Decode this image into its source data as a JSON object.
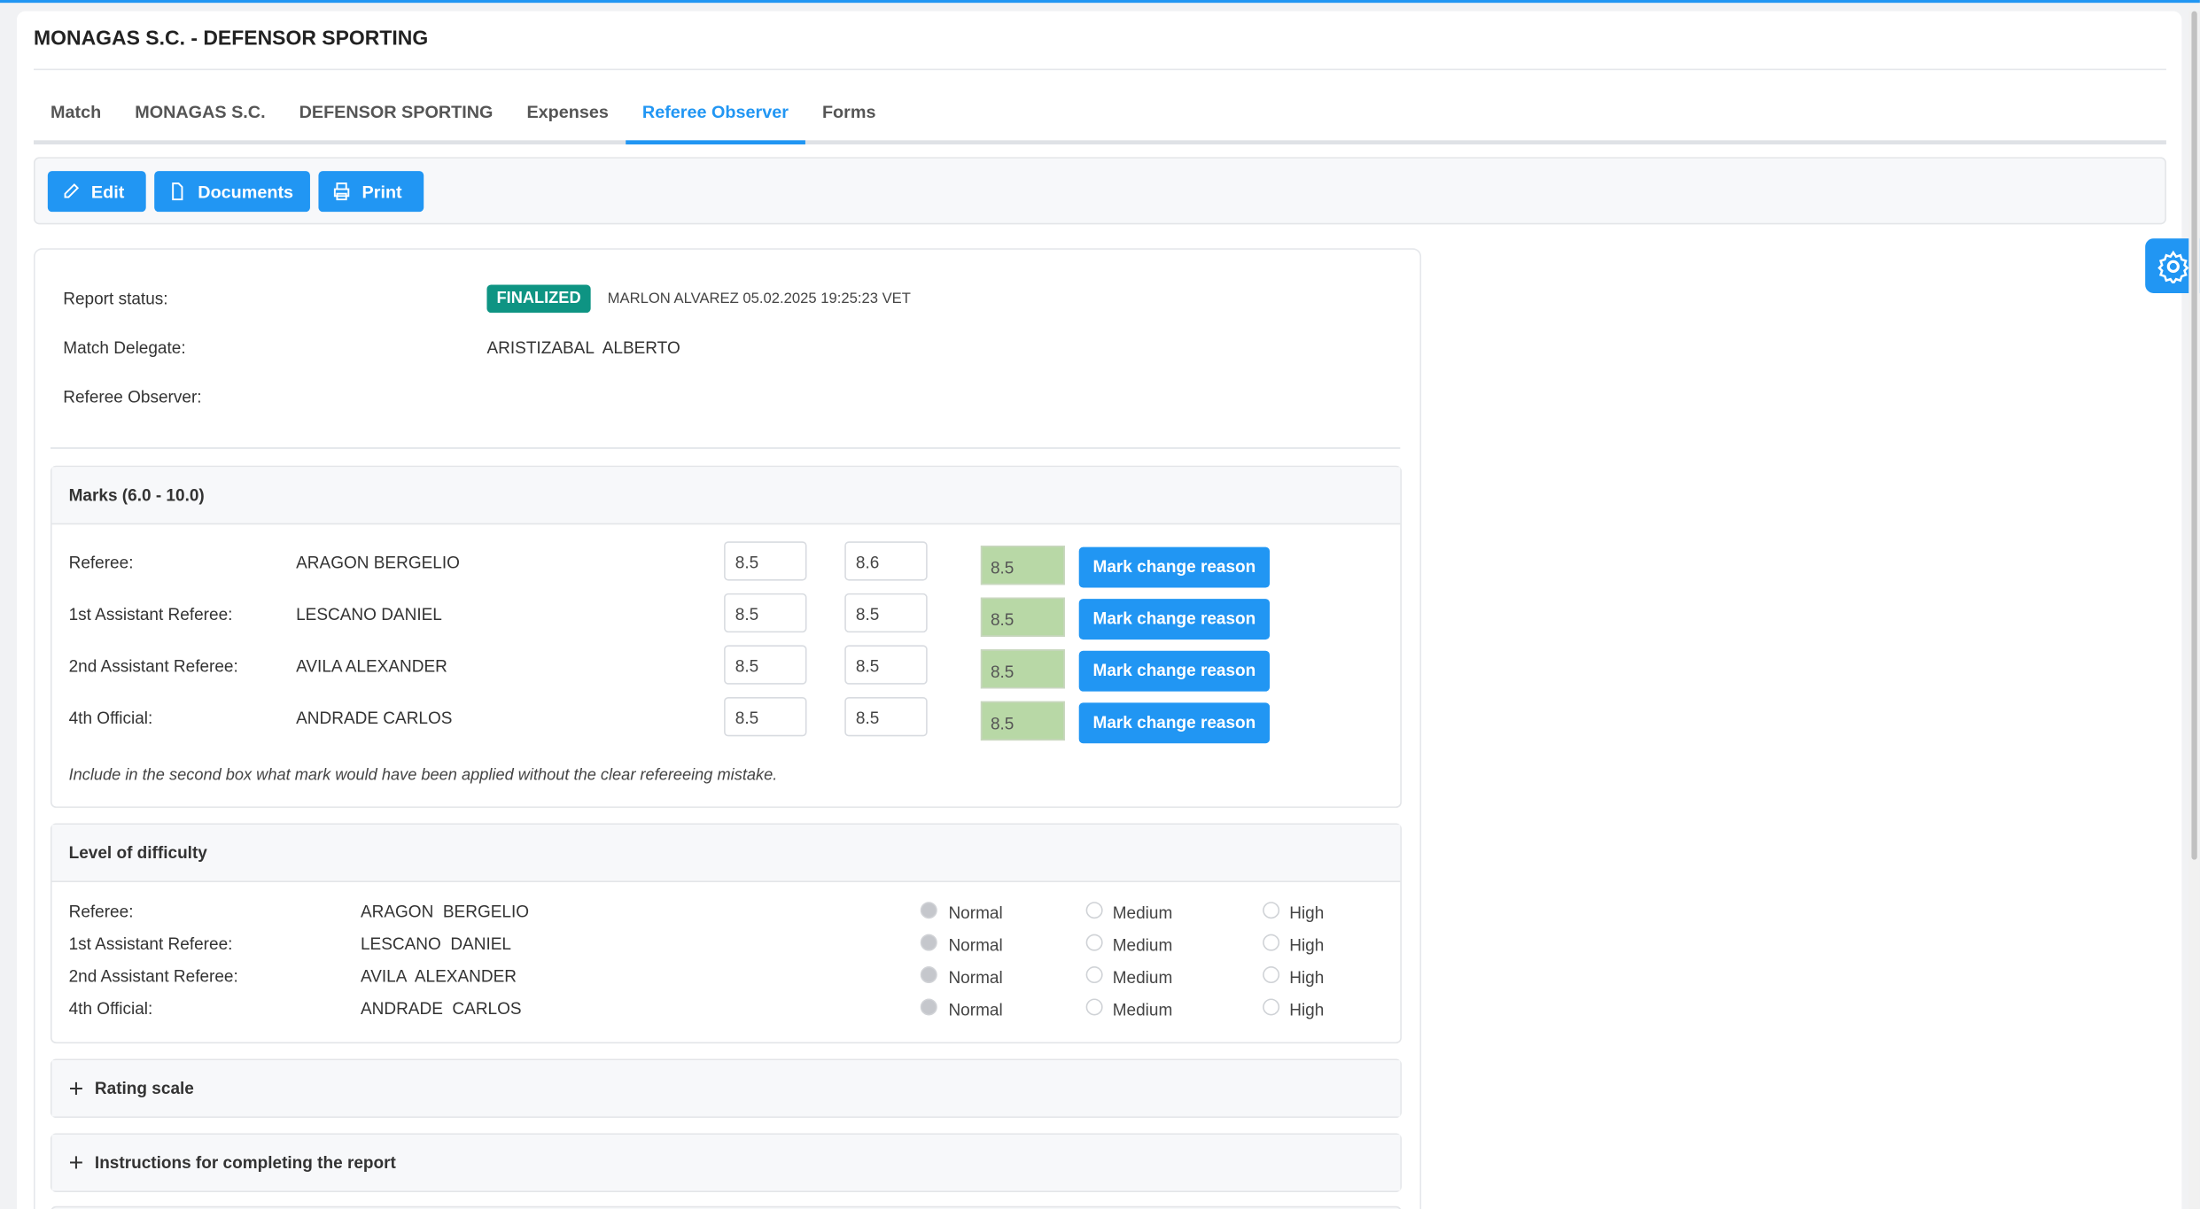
{
  "title": "MONAGAS S.C. - DEFENSOR SPORTING",
  "tabs": [
    {
      "label": "Match"
    },
    {
      "label": "MONAGAS S.C."
    },
    {
      "label": "DEFENSOR SPORTING"
    },
    {
      "label": "Expenses"
    },
    {
      "label": "Referee Observer",
      "active": true
    },
    {
      "label": "Forms"
    }
  ],
  "toolbar": {
    "edit": "Edit",
    "documents": "Documents",
    "print": "Print"
  },
  "info": {
    "status_label": "Report status:",
    "status_badge": "FINALIZED",
    "status_detail": "MARLON ALVAREZ 05.02.2025 19:25:23 VET",
    "delegate_label": "Match Delegate:",
    "delegate_value": "ARISTIZABAL  ALBERTO",
    "observer_label": "Referee Observer:"
  },
  "marks": {
    "title": "Marks (6.0 - 10.0)",
    "button_label": "Mark change reason",
    "note": "Include in the second box what mark would have been applied without the clear refereeing mistake.",
    "rows": [
      {
        "role": "Referee:",
        "name": "ARAGON BERGELIO",
        "mark1": "8.5",
        "mark2": "8.6",
        "final": "8.5"
      },
      {
        "role": "1st Assistant Referee:",
        "name": "LESCANO DANIEL",
        "mark1": "8.5",
        "mark2": "8.5",
        "final": "8.5"
      },
      {
        "role": "2nd Assistant Referee:",
        "name": "AVILA ALEXANDER",
        "mark1": "8.5",
        "mark2": "8.5",
        "final": "8.5"
      },
      {
        "role": "4th Official:",
        "name": "ANDRADE CARLOS",
        "mark1": "8.5",
        "mark2": "8.5",
        "final": "8.5"
      }
    ]
  },
  "difficulty": {
    "title": "Level of difficulty",
    "options": [
      "Normal",
      "Medium",
      "High"
    ],
    "rows": [
      {
        "role": "Referee:",
        "name": "ARAGON  BERGELIO",
        "selected": "Normal"
      },
      {
        "role": "1st Assistant Referee:",
        "name": "LESCANO  DANIEL",
        "selected": "Normal"
      },
      {
        "role": "2nd Assistant Referee:",
        "name": "AVILA  ALEXANDER",
        "selected": "Normal"
      },
      {
        "role": "4th Official:",
        "name": "ANDRADE  CARLOS",
        "selected": "Normal"
      }
    ]
  },
  "rating_scale": "Rating scale",
  "instructions": "Instructions for completing the report",
  "colors": {
    "accent": "#2196f3",
    "finalized": "#0e9483",
    "final_mark_bg": "#b8d8a6"
  }
}
